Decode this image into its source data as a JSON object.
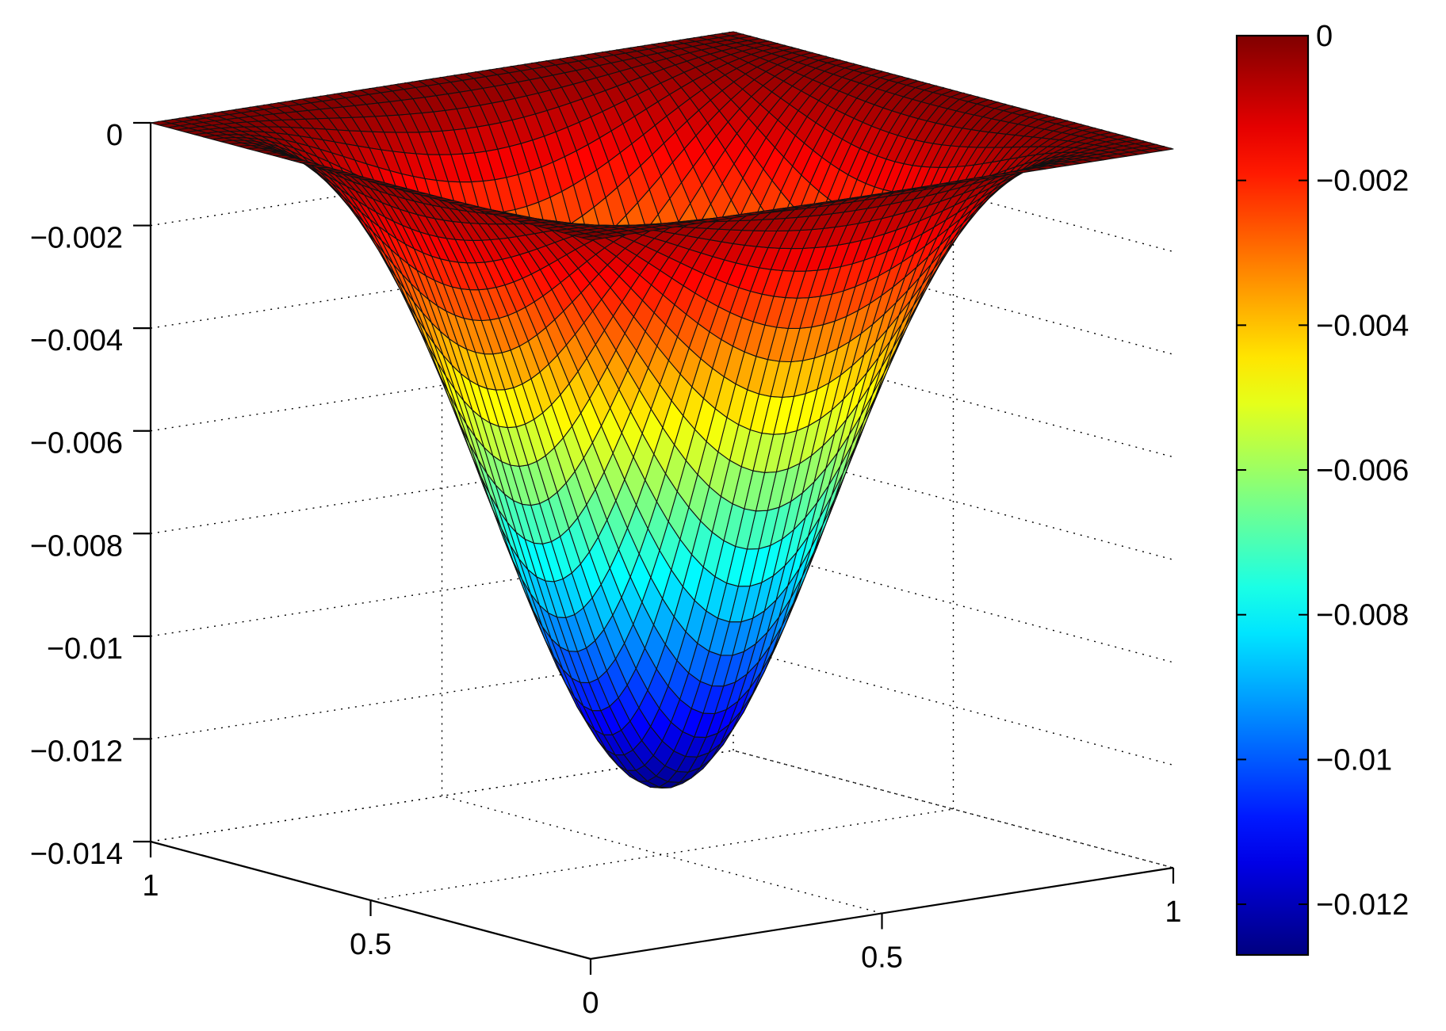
{
  "chart_data": {
    "type": "surface",
    "title": "",
    "xlabel": "",
    "ylabel": "",
    "zlabel": "",
    "function": "z = -0.0127 * sin(pi*x)^2 * sin(pi*y)^2",
    "x_range": [
      0,
      1
    ],
    "y_range": [
      0,
      1
    ],
    "z_range": [
      -0.014,
      0
    ],
    "z_min_value": -0.0127,
    "grid_resolution": 51,
    "grid": true,
    "colormap": "jet",
    "x_ticks": [
      "0",
      "0.5",
      "1"
    ],
    "y_ticks": [
      "0",
      "0.5",
      "1"
    ],
    "z_ticks": [
      "0",
      "−0.002",
      "−0.004",
      "−0.006",
      "−0.008",
      "−0.01",
      "−0.012",
      "−0.014"
    ],
    "colorbar": {
      "position": "right",
      "range": [
        -0.0127,
        0
      ],
      "ticks": [
        "0",
        "−0.002",
        "−0.004",
        "−0.006",
        "−0.008",
        "−0.01",
        "−0.012"
      ]
    }
  }
}
